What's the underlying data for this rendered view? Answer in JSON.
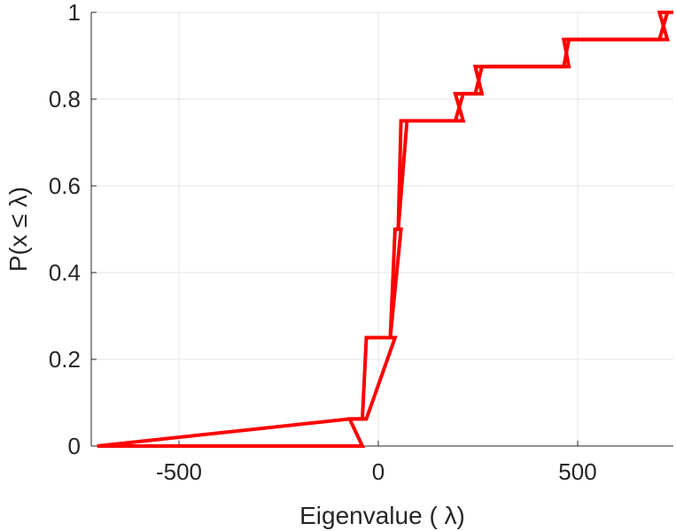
{
  "chart_data": {
    "type": "line",
    "title": "",
    "xlabel": "Eigenvalue (   λ)",
    "ylabel": "P(x  ≤  λ)",
    "xlim": [
      -720,
      740
    ],
    "ylim": [
      0,
      1
    ],
    "x_ticks": [
      -500,
      0,
      500
    ],
    "x_tick_labels": [
      "-500",
      "0",
      "500"
    ],
    "y_ticks": [
      0,
      0.2,
      0.4,
      0.6,
      0.8,
      1
    ],
    "y_tick_labels": [
      "0",
      "0.2",
      "0.4",
      "0.6",
      "0.8",
      "1"
    ],
    "grid": true,
    "series": [
      {
        "color": "#ff0000",
        "step_x": [
          -705,
          -72,
          -40,
          -30,
          30,
          42,
          50,
          57,
          72,
          193,
          213,
          243,
          260,
          280,
          465,
          478,
          490,
          705,
          725,
          740
        ],
        "step_y": [
          0,
          0.0625,
          0.0625,
          0.25,
          0.25,
          0.5,
          0.5,
          0.75,
          0.75,
          0.75,
          0.8125,
          0.8125,
          0.875,
          0.875,
          0.875,
          0.9375,
          0.9375,
          0.9375,
          1,
          1
        ]
      },
      {
        "color": "#ff0000",
        "step_x": [
          -705,
          -40,
          -72,
          -30,
          42,
          30,
          57,
          50,
          72,
          213,
          193,
          260,
          243,
          280,
          478,
          465,
          490,
          725,
          705,
          740
        ],
        "step_y": [
          0,
          0,
          0.0625,
          0.0625,
          0.25,
          0.25,
          0.5,
          0.5,
          0.75,
          0.75,
          0.8125,
          0.8125,
          0.875,
          0.875,
          0.875,
          0.9375,
          0.9375,
          0.9375,
          1,
          1
        ]
      }
    ]
  }
}
